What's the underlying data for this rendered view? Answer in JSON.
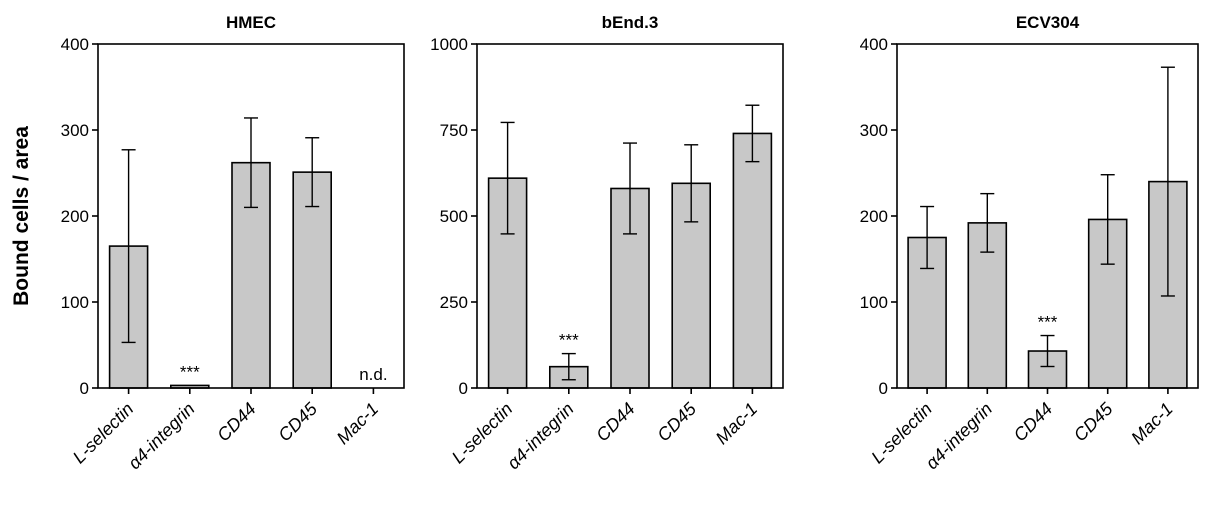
{
  "ylabel": "Bound cells / area",
  "chart_data": [
    {
      "type": "bar",
      "title": "HMEC",
      "categories": [
        "L-selectin",
        "α4-integrin",
        "CD44",
        "CD45",
        "Mac-1"
      ],
      "values": [
        165,
        3,
        262,
        251,
        null
      ],
      "errors": [
        112,
        0,
        52,
        40,
        null
      ],
      "ylim": [
        0,
        400
      ],
      "yticks": [
        0,
        100,
        200,
        300,
        400
      ],
      "annotations": [
        {
          "category": "α4-integrin",
          "text": "***"
        },
        {
          "category": "Mac-1",
          "text": "n.d."
        }
      ]
    },
    {
      "type": "bar",
      "title": "bEnd.3",
      "categories": [
        "L-selectin",
        "α4-integrin",
        "CD44",
        "CD45",
        "Mac-1"
      ],
      "values": [
        610,
        62,
        580,
        595,
        740
      ],
      "errors": [
        162,
        38,
        132,
        112,
        82
      ],
      "ylim": [
        0,
        1000
      ],
      "yticks": [
        0,
        250,
        500,
        750,
        1000
      ],
      "annotations": [
        {
          "category": "α4-integrin",
          "text": "***"
        }
      ]
    },
    {
      "type": "bar",
      "title": "ECV304",
      "categories": [
        "L-selectin",
        "α4-integrin",
        "CD44",
        "CD45",
        "Mac-1"
      ],
      "values": [
        175,
        192,
        43,
        196,
        240
      ],
      "errors": [
        36,
        34,
        18,
        52,
        133
      ],
      "ylim": [
        0,
        400
      ],
      "yticks": [
        0,
        100,
        200,
        300,
        400
      ],
      "annotations": [
        {
          "category": "CD44",
          "text": "***"
        }
      ]
    }
  ]
}
